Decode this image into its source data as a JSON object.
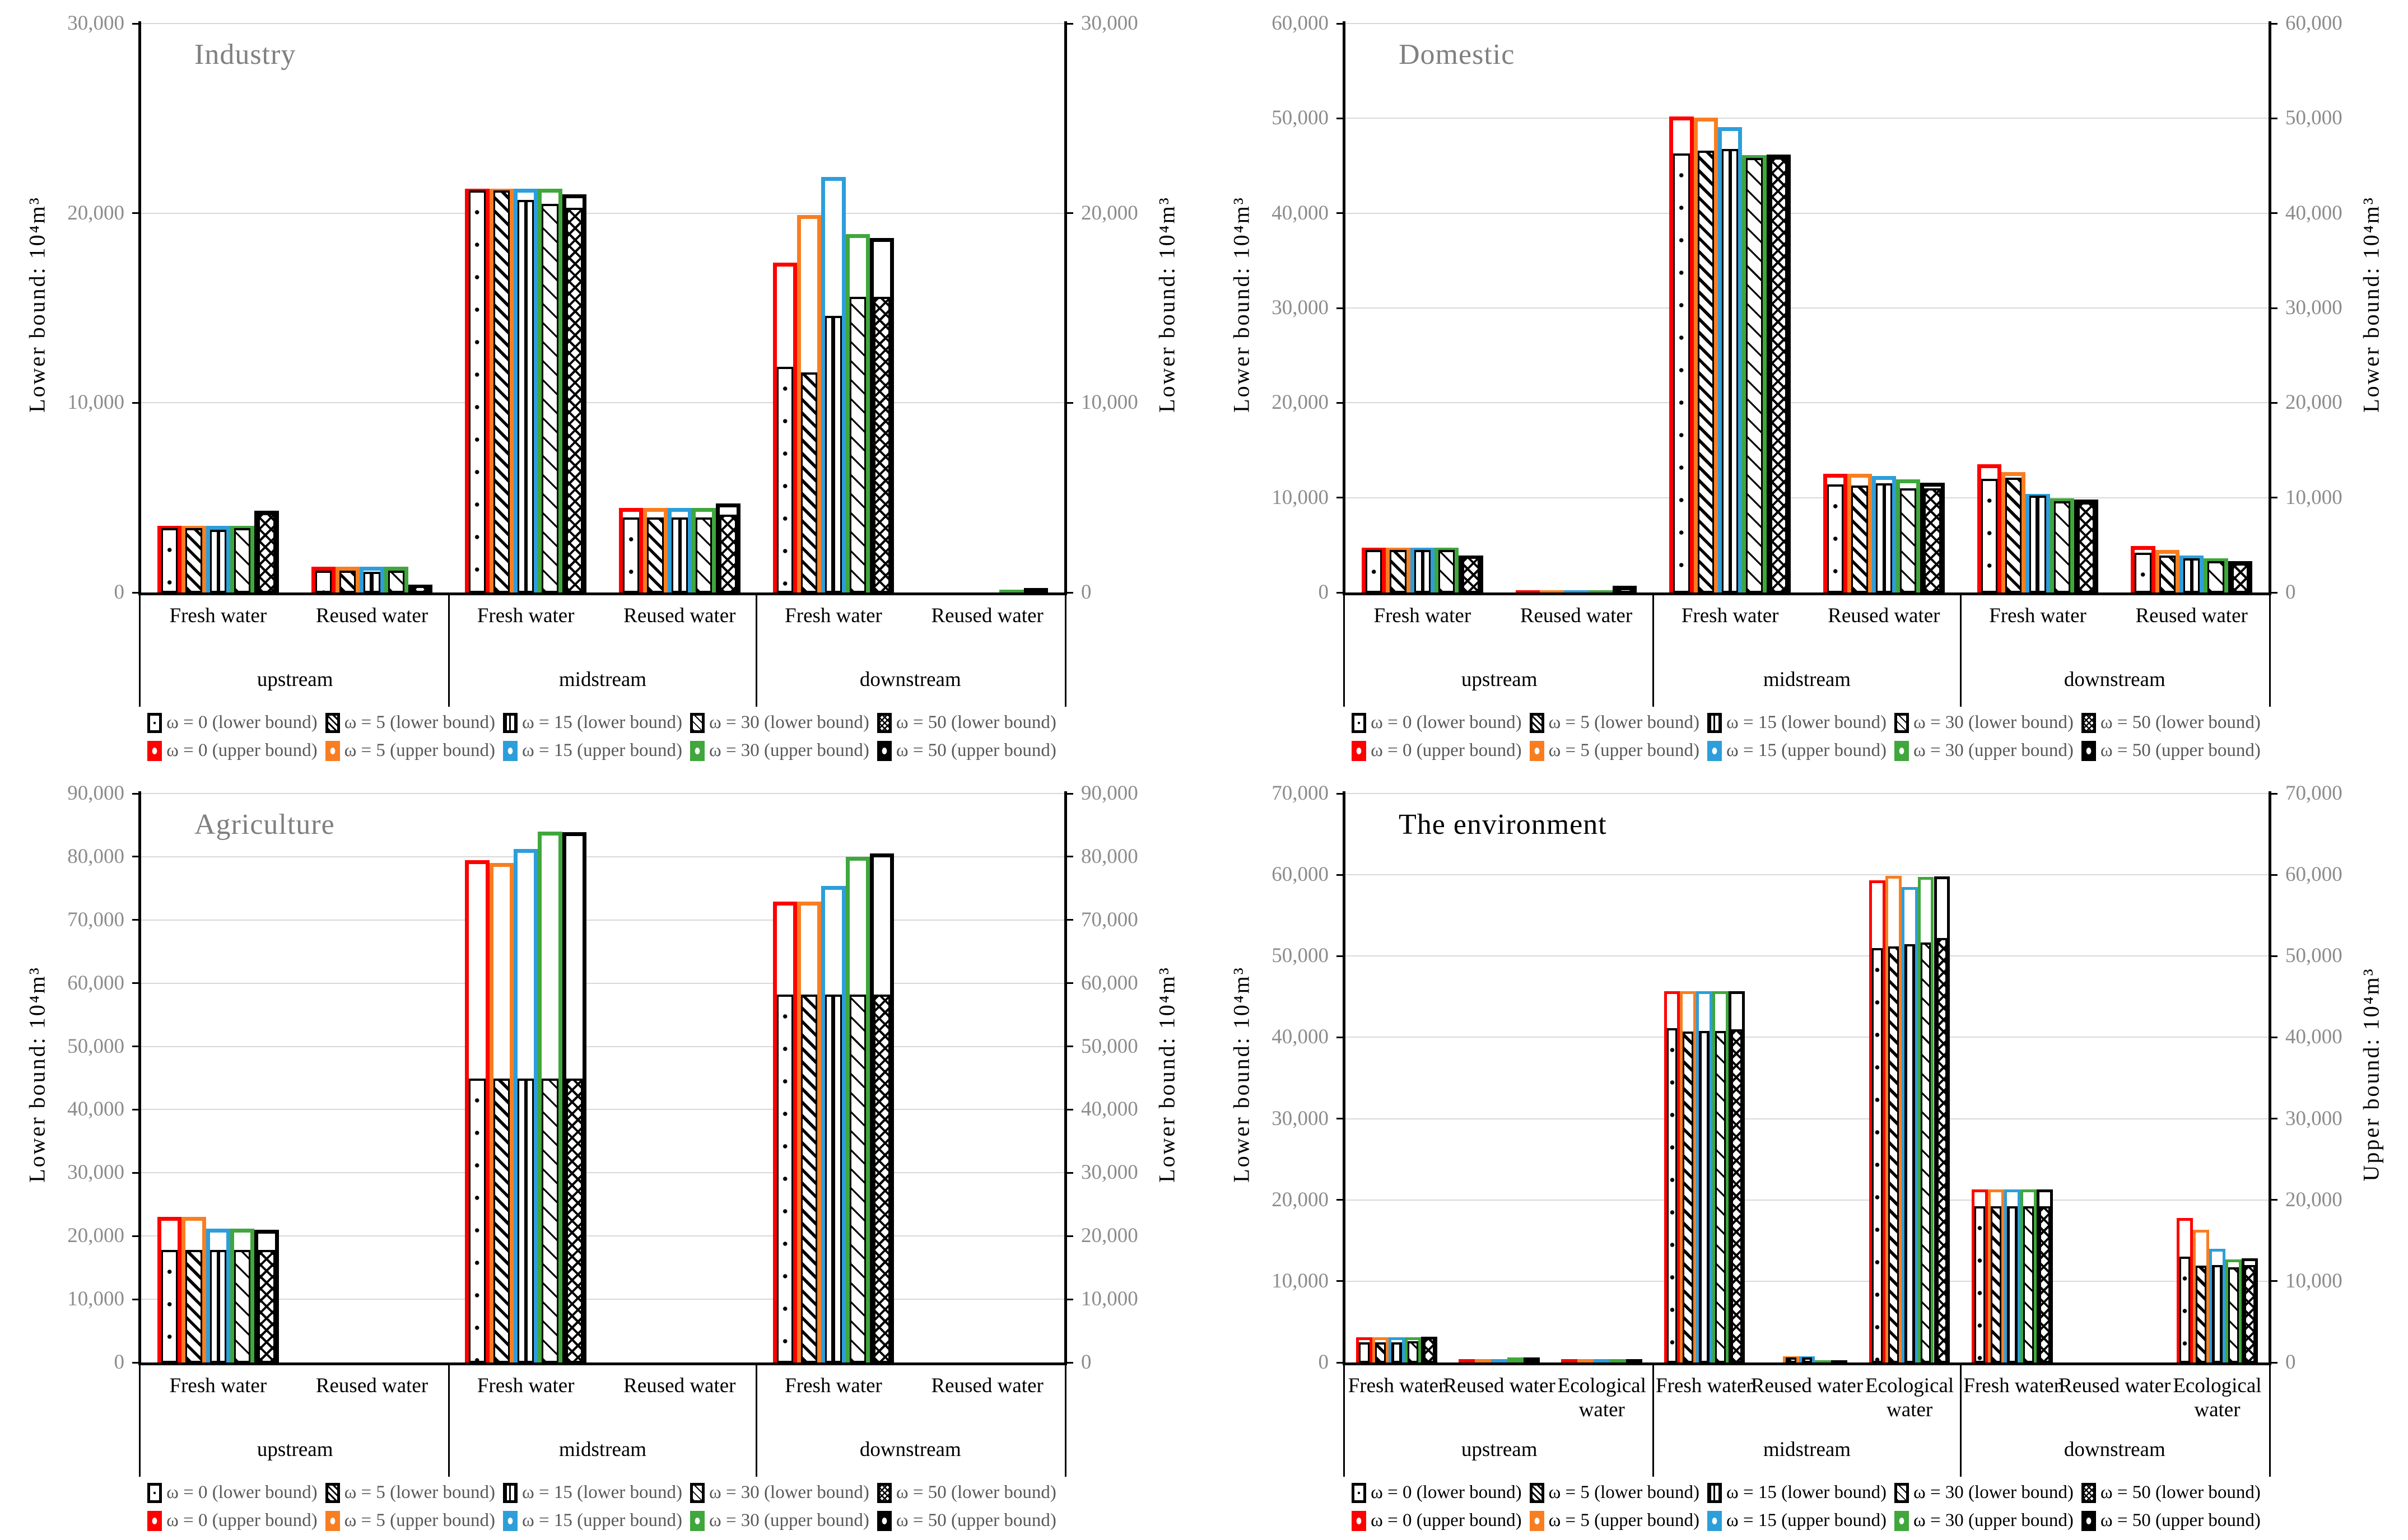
{
  "chart_data": {
    "type": "bar",
    "unit_note": "grouped bars; each omega slot overlays an upper-bound outlined bar and a lower-bound patterned bar",
    "series_meta": {
      "omegas": [
        0,
        5,
        15,
        30,
        50
      ],
      "upper_colors": [
        "#FF0000",
        "#F87E21",
        "#2D9EDA",
        "#3FA73C",
        "#000000"
      ],
      "lower_patterns": [
        "dots",
        "diagonal-heavy",
        "vertical-lines",
        "diagonal-light",
        "chevron"
      ],
      "legend_lower": [
        "ω = 0 (lower bound)",
        "ω = 5 (lower bound)",
        "ω = 15 (lower bound)",
        "ω = 30 (lower bound)",
        "ω = 50 (lower bound)"
      ],
      "legend_upper": [
        "ω = 0 (upper bound)",
        "ω = 5 (upper bound)",
        "ω = 15 (upper bound)",
        "ω = 30 (upper bound)",
        "ω = 50 (upper bound)"
      ]
    },
    "panels": [
      {
        "title": "Industry",
        "title_color": "#808080",
        "legend_text_color": "#595959",
        "y_max": 30000,
        "y_step": 10000,
        "left_axis_label": "Lower bound: 10⁴m³",
        "right_axis_label": "Lower bound: 10⁴m³",
        "regions": [
          {
            "label": "upstream",
            "groups": [
              {
                "label": "Fresh water",
                "upper": [
                  3500,
                  3500,
                  3500,
                  3500,
                  4300
                ],
                "lower": [
                  3400,
                  3400,
                  3300,
                  3400,
                  4200
                ]
              },
              {
                "label": "Reused water",
                "upper": [
                  1350,
                  1350,
                  1350,
                  1350,
                  400
                ],
                "lower": [
                  1150,
                  1150,
                  1100,
                  1150,
                  350
                ]
              }
            ]
          },
          {
            "label": "midstream",
            "groups": [
              {
                "label": "Fresh water",
                "upper": [
                  21300,
                  21300,
                  21300,
                  21300,
                  21000
                ],
                "lower": [
                  21200,
                  21200,
                  20700,
                  20500,
                  20300
                ]
              },
              {
                "label": "Reused water",
                "upper": [
                  4450,
                  4450,
                  4450,
                  4450,
                  4700
                ],
                "lower": [
                  3950,
                  3950,
                  3950,
                  3950,
                  4100
                ]
              }
            ]
          },
          {
            "label": "downstream",
            "groups": [
              {
                "label": "Fresh water",
                "upper": [
                  17400,
                  19900,
                  21900,
                  18900,
                  18700
                ],
                "lower": [
                  11900,
                  11600,
                  14600,
                  15600,
                  15600
                ]
              },
              {
                "label": "Reused water",
                "upper": [
                  0,
                  0,
                  0,
                  150,
                  250
                ],
                "lower": [
                  0,
                  0,
                  0,
                  100,
                  200
                ]
              }
            ]
          }
        ]
      },
      {
        "title": "Domestic",
        "title_color": "#808080",
        "legend_text_color": "#595959",
        "y_max": 60000,
        "y_step": 10000,
        "left_axis_label": "Lower bound: 10⁴m³",
        "right_axis_label": "Lower bound: 10⁴m³",
        "regions": [
          {
            "label": "upstream",
            "groups": [
              {
                "label": "Fresh water",
                "upper": [
                  4700,
                  4700,
                  4700,
                  4700,
                  3900
                ],
                "lower": [
                  4500,
                  4500,
                  4500,
                  4500,
                  3800
                ]
              },
              {
                "label": "Reused water",
                "upper": [
                  200,
                  200,
                  200,
                  200,
                  700
                ],
                "lower": [
                  150,
                  150,
                  150,
                  150,
                  500
                ]
              }
            ]
          },
          {
            "label": "midstream",
            "groups": [
              {
                "label": "Fresh water",
                "upper": [
                  50200,
                  50100,
                  49100,
                  46100,
                  46200
                ],
                "lower": [
                  46300,
                  46600,
                  46800,
                  45800,
                  45900
                ]
              },
              {
                "label": "Reused water",
                "upper": [
                  12500,
                  12500,
                  12300,
                  11900,
                  11600
                ],
                "lower": [
                  11400,
                  11300,
                  11500,
                  11000,
                  11000
                ]
              }
            ]
          },
          {
            "label": "downstream",
            "groups": [
              {
                "label": "Fresh water",
                "upper": [
                  13500,
                  12700,
                  10400,
                  9900,
                  9800
                ],
                "lower": [
                  12000,
                  12100,
                  10200,
                  9600,
                  9500
                ]
              },
              {
                "label": "Reused water",
                "upper": [
                  4900,
                  4500,
                  3900,
                  3600,
                  3300
                ],
                "lower": [
                  4200,
                  3900,
                  3600,
                  3300,
                  3100
                ]
              }
            ]
          }
        ]
      },
      {
        "title": "Agriculture",
        "title_color": "#808080",
        "legend_text_color": "#595959",
        "y_max": 90000,
        "y_step": 10000,
        "left_axis_label": "Lower bound: 10⁴m³",
        "right_axis_label": "Lower bound: 10⁴m³",
        "regions": [
          {
            "label": "upstream",
            "groups": [
              {
                "label": "Fresh water",
                "upper": [
                  23000,
                  23000,
                  21200,
                  21200,
                  21000
                ],
                "lower": [
                  17800,
                  17800,
                  17800,
                  17800,
                  17800
                ]
              },
              {
                "label": "Reused water",
                "upper": [
                  0,
                  0,
                  0,
                  0,
                  0
                ],
                "lower": [
                  0,
                  0,
                  0,
                  0,
                  0
                ]
              }
            ]
          },
          {
            "label": "midstream",
            "groups": [
              {
                "label": "Fresh water",
                "upper": [
                  79500,
                  79000,
                  81200,
                  84000,
                  83900
                ],
                "lower": [
                  44900,
                  44900,
                  44900,
                  44900,
                  44900
                ]
              },
              {
                "label": "Reused water",
                "upper": [
                  0,
                  0,
                  0,
                  0,
                  0
                ],
                "lower": [
                  0,
                  0,
                  0,
                  0,
                  0
                ]
              }
            ]
          },
          {
            "label": "downstream",
            "groups": [
              {
                "label": "Fresh water",
                "upper": [
                  72900,
                  72900,
                  75400,
                  80000,
                  80500
                ],
                "lower": [
                  58200,
                  58200,
                  58200,
                  58200,
                  58200
                ]
              },
              {
                "label": "Reused water",
                "upper": [
                  0,
                  0,
                  0,
                  0,
                  0
                ],
                "lower": [
                  0,
                  0,
                  0,
                  0,
                  0
                ]
              }
            ]
          }
        ]
      },
      {
        "title": "The environment",
        "title_color": "#000000",
        "legend_text_color": "#000000",
        "y_max": 70000,
        "y_step": 10000,
        "left_axis_label": "Lower bound: 10⁴m³",
        "right_axis_label": "Upper bound: 10⁴m³",
        "regions": [
          {
            "label": "upstream",
            "groups": [
              {
                "label": "Fresh water",
                "upper": [
                  3100,
                  3100,
                  3100,
                  3100,
                  3200
                ],
                "lower": [
                  2500,
                  2500,
                  2500,
                  2600,
                  3100
                ]
              },
              {
                "label": "Reused water",
                "upper": [
                  400,
                  400,
                  400,
                  650,
                  650
                ],
                "lower": [
                  300,
                  300,
                  300,
                  550,
                  550
                ]
              },
              {
                "label": "Ecological\nwater",
                "upper": [
                  400,
                  400,
                  400,
                  400,
                  400
                ],
                "lower": [
                  300,
                  300,
                  300,
                  300,
                  300
                ]
              }
            ]
          },
          {
            "label": "midstream",
            "groups": [
              {
                "label": "Fresh water",
                "upper": [
                  45700,
                  45700,
                  45700,
                  45700,
                  45700
                ],
                "lower": [
                  41100,
                  40700,
                  40800,
                  40800,
                  41000
                ]
              },
              {
                "label": "Reused water",
                "upper": [
                  0,
                  750,
                  750,
                  200,
                  250
                ],
                "lower": [
                  0,
                  650,
                  650,
                  150,
                  200
                ]
              },
              {
                "label": "Ecological\nwater",
                "upper": [
                  59300,
                  59900,
                  58500,
                  59700,
                  59800
                ],
                "lower": [
                  51000,
                  51200,
                  51500,
                  51700,
                  52200
                ]
              }
            ]
          },
          {
            "label": "downstream",
            "groups": [
              {
                "label": "Fresh water",
                "upper": [
                  21300,
                  21300,
                  21300,
                  21300,
                  21300
                ],
                "lower": [
                  19200,
                  19200,
                  19200,
                  19200,
                  19200
                ]
              },
              {
                "label": "Reused water",
                "upper": [
                  0,
                  0,
                  0,
                  0,
                  0
                ],
                "lower": [
                  0,
                  0,
                  0,
                  0,
                  0
                ]
              },
              {
                "label": "Ecological\nwater",
                "upper": [
                  17800,
                  16300,
                  14000,
                  12700,
                  12800
                ],
                "lower": [
                  13000,
                  11900,
                  12000,
                  11700,
                  12000
                ]
              }
            ]
          }
        ]
      }
    ]
  }
}
